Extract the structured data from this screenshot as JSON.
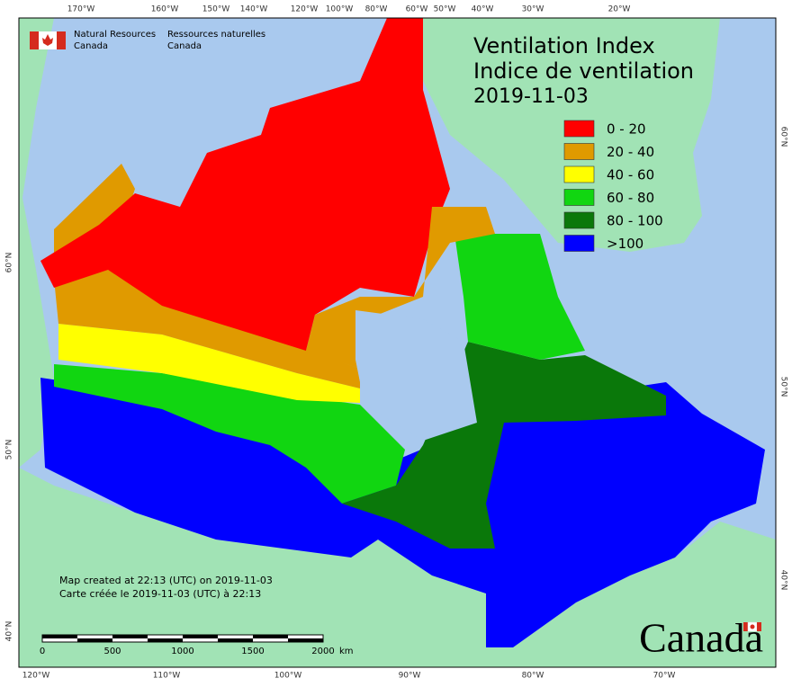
{
  "header": {
    "agency_en": [
      "Natural Resources",
      "Canada"
    ],
    "agency_fr": [
      "Ressources naturelles",
      "Canada"
    ]
  },
  "title": [
    "Ventilation Index",
    "Indice de ventilation",
    "2019-11-03"
  ],
  "legend": [
    {
      "label": "0 - 20",
      "color": "#ff0000"
    },
    {
      "label": "20 - 40",
      "color": "#e09a00"
    },
    {
      "label": "40 - 60",
      "color": "#ffff00"
    },
    {
      "label": "60 - 80",
      "color": "#11d611"
    },
    {
      "label": "80 - 100",
      "color": "#0a780a"
    },
    {
      "label": ">100",
      "color": "#0000ff"
    }
  ],
  "graticule": {
    "top": [
      "170°W",
      "160°W",
      "150°W",
      "140°W",
      "120°W",
      "100°W",
      "80°W",
      "60°W",
      "50°W",
      "40°W",
      "30°W",
      "20°W"
    ],
    "bottom": [
      "120°W",
      "110°W",
      "100°W",
      "90°W",
      "80°W",
      "70°W"
    ],
    "left": [
      "60°N",
      "50°N",
      "40°N"
    ],
    "right": [
      "60°N",
      "50°N",
      "40°N"
    ]
  },
  "footer": [
    "Map created at 22:13 (UTC) on 2019-11-03",
    "Carte créée le 2019-11-03 (UTC) à 22:13"
  ],
  "scale_bar": {
    "labels": [
      "0",
      "500",
      "1000",
      "1500",
      "2000"
    ],
    "unit": "km"
  },
  "wordmark": "Canada"
}
